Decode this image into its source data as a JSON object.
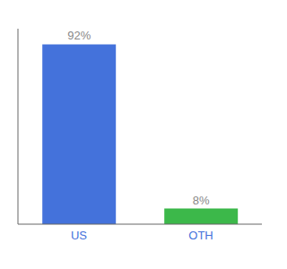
{
  "chart_data": {
    "type": "bar",
    "categories": [
      "US",
      "OTH"
    ],
    "values": [
      92,
      8
    ],
    "value_labels": [
      "92%",
      "8%"
    ],
    "colors": [
      "#4472db",
      "#3cb84a"
    ],
    "ylim": [
      0,
      100
    ],
    "data_labels": true,
    "tick_labels": "x"
  }
}
